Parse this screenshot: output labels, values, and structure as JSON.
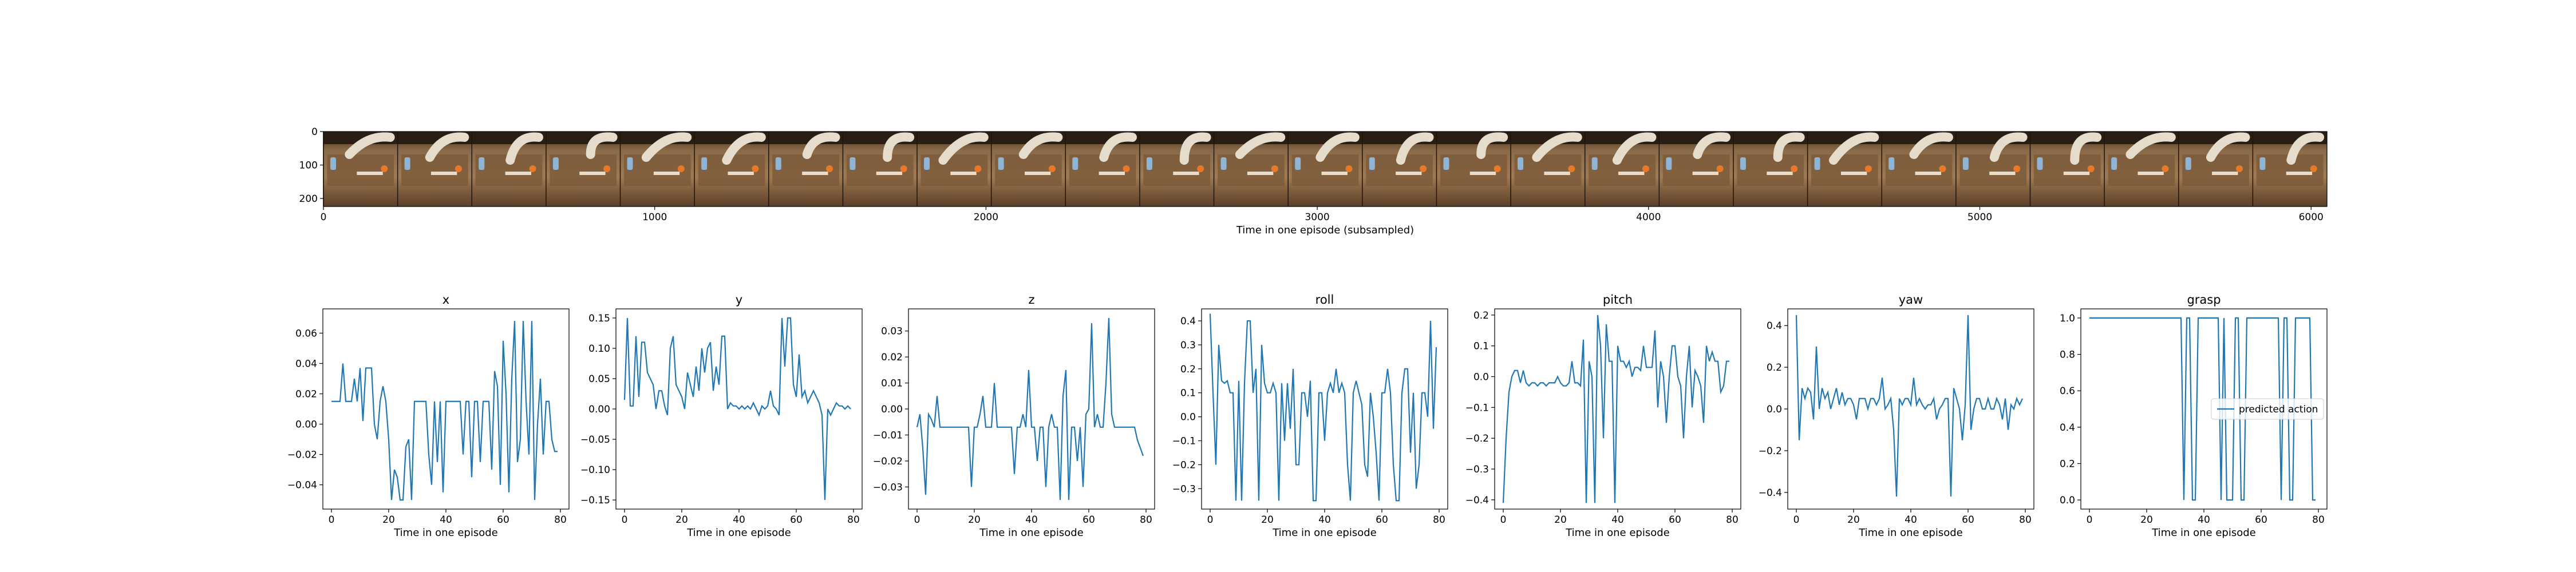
{
  "colors": {
    "series": "#1f77b4",
    "frame": "#000000",
    "background": "#ffffff"
  },
  "filmstrip": {
    "xlabel": "Time in one episode (subsampled)",
    "xlim": [
      0,
      6048
    ],
    "ylim": [
      224,
      0
    ],
    "xticks": [
      0,
      1000,
      2000,
      3000,
      4000,
      5000,
      6000
    ],
    "yticks": [
      0,
      100,
      200
    ],
    "frames": 27,
    "image_description_icon": "robot-arm-frames-image"
  },
  "chart_data": [
    {
      "type": "line",
      "title": "x",
      "xlabel": "Time in one episode",
      "ylabel": "",
      "xlim": [
        -3,
        83
      ],
      "ylim": [
        -0.056,
        0.076
      ],
      "xticks": [
        0,
        20,
        40,
        60,
        80
      ],
      "yticks": [
        -0.04,
        -0.02,
        0.0,
        0.02,
        0.04,
        0.06
      ],
      "yticklabels": [
        "−0.04",
        "−0.02",
        "0.00",
        "0.02",
        "0.04",
        "0.06"
      ],
      "series": [
        {
          "values": [
            0.015,
            0.015,
            0.015,
            0.015,
            0.04,
            0.015,
            0.015,
            0.015,
            0.03,
            0.015,
            0.037,
            0.002,
            0.037,
            0.037,
            0.037,
            0.0,
            -0.01,
            0.015,
            0.025,
            0.015,
            -0.01,
            -0.05,
            -0.03,
            -0.035,
            -0.05,
            -0.05,
            -0.015,
            -0.01,
            -0.05,
            0.015,
            0.015,
            0.015,
            0.015,
            0.015,
            -0.02,
            -0.04,
            0.015,
            -0.025,
            0.015,
            -0.045,
            0.015,
            0.015,
            0.015,
            0.015,
            0.015,
            0.015,
            -0.02,
            0.015,
            0.015,
            -0.035,
            0.015,
            0.015,
            -0.025,
            0.015,
            0.015,
            0.015,
            -0.03,
            0.035,
            0.025,
            -0.04,
            0.055,
            0.02,
            -0.045,
            0.03,
            0.068,
            -0.025,
            -0.01,
            0.068,
            0.015,
            -0.02,
            0.068,
            -0.05,
            0.0,
            0.03,
            -0.02,
            0.015,
            0.015,
            -0.01,
            -0.018,
            -0.018
          ]
        }
      ]
    },
    {
      "type": "line",
      "title": "y",
      "xlabel": "Time in one episode",
      "ylabel": "",
      "xlim": [
        -3,
        83
      ],
      "ylim": [
        -0.165,
        0.165
      ],
      "xticks": [
        0,
        20,
        40,
        60,
        80
      ],
      "yticks": [
        -0.15,
        -0.1,
        -0.05,
        0.0,
        0.05,
        0.1,
        0.15
      ],
      "yticklabels": [
        "−0.15",
        "−0.10",
        "−0.05",
        "0.00",
        "0.05",
        "0.10",
        "0.15"
      ],
      "series": [
        {
          "values": [
            0.015,
            0.15,
            0.005,
            0.005,
            0.12,
            0.02,
            0.11,
            0.11,
            0.06,
            0.05,
            0.04,
            0.0,
            0.03,
            0.03,
            0.005,
            -0.01,
            0.1,
            0.12,
            0.04,
            0.03,
            0.02,
            0.0,
            0.06,
            0.04,
            0.02,
            0.07,
            0.03,
            0.1,
            0.06,
            0.1,
            0.11,
            0.03,
            0.07,
            0.04,
            0.12,
            0.12,
            0.0,
            0.01,
            0.005,
            0.005,
            0.0,
            0.005,
            0.0,
            0.005,
            0.0,
            0.01,
            0.0,
            -0.01,
            0.005,
            0.0,
            0.005,
            0.03,
            0.005,
            0.0,
            -0.01,
            0.15,
            0.07,
            0.15,
            0.15,
            0.04,
            0.02,
            0.09,
            0.02,
            0.03,
            0.01,
            0.02,
            0.03,
            0.02,
            0.01,
            -0.01,
            -0.15,
            0.0,
            -0.01,
            0.0,
            0.01,
            0.005,
            0.005,
            0.0,
            0.005,
            0.0
          ]
        }
      ]
    },
    {
      "type": "line",
      "title": "z",
      "xlabel": "Time in one episode",
      "ylabel": "",
      "xlim": [
        -3,
        83
      ],
      "ylim": [
        -0.0385,
        0.0385
      ],
      "xticks": [
        0,
        20,
        40,
        60,
        80
      ],
      "yticks": [
        -0.03,
        -0.02,
        -0.01,
        0.0,
        0.01,
        0.02,
        0.03
      ],
      "yticklabels": [
        "−0.03",
        "−0.02",
        "−0.01",
        "0.00",
        "0.01",
        "0.02",
        "0.03"
      ],
      "series": [
        {
          "values": [
            -0.007,
            -0.002,
            -0.015,
            -0.033,
            -0.002,
            -0.004,
            -0.007,
            0.005,
            -0.007,
            -0.007,
            -0.007,
            -0.007,
            -0.007,
            -0.007,
            -0.007,
            -0.007,
            -0.007,
            -0.007,
            -0.007,
            -0.03,
            -0.007,
            -0.007,
            -0.002,
            0.005,
            -0.007,
            -0.007,
            -0.007,
            0.01,
            -0.007,
            -0.007,
            -0.007,
            -0.007,
            -0.007,
            -0.007,
            -0.025,
            -0.007,
            -0.007,
            -0.002,
            -0.007,
            0.015,
            -0.007,
            -0.007,
            -0.02,
            -0.007,
            -0.007,
            -0.03,
            -0.007,
            -0.002,
            -0.007,
            -0.007,
            -0.035,
            0.005,
            0.015,
            -0.035,
            -0.007,
            -0.007,
            -0.02,
            -0.007,
            -0.03,
            -0.002,
            0.0,
            0.033,
            -0.007,
            -0.002,
            -0.007,
            -0.007,
            0.01,
            0.035,
            -0.002,
            -0.007,
            -0.007,
            -0.007,
            -0.007,
            -0.007,
            -0.007,
            -0.007,
            -0.007,
            -0.012,
            -0.015,
            -0.018
          ]
        }
      ]
    },
    {
      "type": "line",
      "title": "roll",
      "xlabel": "Time in one episode",
      "ylabel": "",
      "xlim": [
        -3,
        83
      ],
      "ylim": [
        -0.385,
        0.45
      ],
      "xticks": [
        0,
        20,
        40,
        60,
        80
      ],
      "yticks": [
        -0.3,
        -0.2,
        -0.1,
        0.0,
        0.1,
        0.2,
        0.3,
        0.4
      ],
      "yticklabels": [
        "−0.3",
        "−0.2",
        "−0.1",
        "0.0",
        "0.1",
        "0.2",
        "0.3",
        "0.4"
      ],
      "series": [
        {
          "values": [
            0.43,
            0.1,
            -0.2,
            0.3,
            0.15,
            0.14,
            0.15,
            0.1,
            0.1,
            -0.35,
            0.15,
            -0.35,
            0.14,
            0.4,
            0.4,
            0.1,
            0.2,
            -0.35,
            0.3,
            0.14,
            0.1,
            0.1,
            0.14,
            0.1,
            -0.35,
            0.14,
            -0.1,
            0.14,
            -0.05,
            0.2,
            -0.2,
            -0.2,
            0.1,
            0.1,
            0.0,
            0.15,
            -0.35,
            -0.35,
            0.1,
            0.1,
            -0.1,
            0.1,
            0.14,
            0.1,
            0.2,
            0.1,
            0.14,
            0.1,
            -0.2,
            -0.35,
            0.1,
            0.15,
            0.1,
            0.05,
            -0.2,
            -0.25,
            0.1,
            0.0,
            -0.15,
            -0.35,
            0.1,
            0.1,
            0.2,
            0.1,
            -0.2,
            -0.35,
            -0.35,
            0.1,
            0.2,
            0.2,
            -0.15,
            0.1,
            -0.3,
            -0.2,
            0.1,
            0.1,
            0.0,
            0.4,
            -0.05,
            0.29
          ]
        }
      ]
    },
    {
      "type": "line",
      "title": "pitch",
      "xlabel": "Time in one episode",
      "ylabel": "",
      "xlim": [
        -3,
        83
      ],
      "ylim": [
        -0.43,
        0.22
      ],
      "xticks": [
        0,
        20,
        40,
        60,
        80
      ],
      "yticks": [
        -0.4,
        -0.3,
        -0.2,
        -0.1,
        0.0,
        0.1,
        0.2
      ],
      "yticklabels": [
        "−0.4",
        "−0.3",
        "−0.2",
        "−0.1",
        "0.0",
        "0.1",
        "0.2"
      ],
      "series": [
        {
          "values": [
            -0.41,
            -0.2,
            -0.05,
            0.0,
            0.02,
            0.02,
            -0.02,
            0.02,
            -0.02,
            -0.03,
            -0.02,
            -0.02,
            -0.03,
            -0.02,
            -0.02,
            -0.03,
            -0.02,
            -0.02,
            -0.02,
            0.0,
            -0.02,
            -0.03,
            -0.03,
            -0.02,
            0.05,
            -0.02,
            -0.02,
            -0.03,
            0.12,
            -0.41,
            0.05,
            0.0,
            -0.41,
            0.2,
            0.1,
            -0.2,
            0.17,
            0.05,
            0.05,
            -0.41,
            0.1,
            0.05,
            0.05,
            0.03,
            0.05,
            0.0,
            0.03,
            0.03,
            0.02,
            0.1,
            0.03,
            0.03,
            0.03,
            0.15,
            -0.1,
            0.05,
            0.0,
            -0.15,
            0.0,
            0.1,
            0.1,
            0.0,
            -0.03,
            -0.2,
            0.0,
            0.1,
            -0.1,
            0.02,
            0.0,
            -0.03,
            -0.15,
            0.1,
            0.05,
            0.08,
            0.05,
            0.05,
            -0.05,
            -0.03,
            0.05,
            0.05
          ]
        }
      ]
    },
    {
      "type": "line",
      "title": "yaw",
      "xlabel": "Time in one episode",
      "ylabel": "",
      "xlim": [
        -3,
        83
      ],
      "ylim": [
        -0.48,
        0.48
      ],
      "xticks": [
        0,
        20,
        40,
        60,
        80
      ],
      "yticks": [
        -0.4,
        -0.2,
        0.0,
        0.2,
        0.4
      ],
      "yticklabels": [
        "−0.4",
        "−0.2",
        "0.0",
        "0.2",
        "0.4"
      ],
      "series": [
        {
          "values": [
            0.45,
            -0.15,
            0.1,
            0.05,
            0.1,
            0.08,
            -0.05,
            0.3,
            0.0,
            0.1,
            0.05,
            0.08,
            0.0,
            0.05,
            0.1,
            0.02,
            0.08,
            0.02,
            0.05,
            0.05,
            0.02,
            -0.05,
            0.05,
            0.05,
            0.05,
            0.0,
            0.05,
            0.05,
            0.02,
            0.05,
            0.15,
            0.0,
            0.02,
            0.05,
            -0.1,
            -0.42,
            0.05,
            0.02,
            0.05,
            0.05,
            0.02,
            0.15,
            0.02,
            0.05,
            0.02,
            0.0,
            0.02,
            0.02,
            0.05,
            -0.05,
            0.0,
            0.02,
            0.05,
            0.05,
            -0.42,
            0.1,
            0.05,
            0.0,
            -0.15,
            0.02,
            0.45,
            -0.1,
            0.0,
            0.05,
            0.05,
            0.0,
            0.0,
            0.05,
            0.0,
            0.0,
            0.05,
            0.02,
            -0.05,
            0.05,
            -0.1,
            0.02,
            0.0,
            0.05,
            0.02,
            0.05
          ]
        }
      ]
    },
    {
      "type": "line",
      "title": "grasp",
      "xlabel": "Time in one episode",
      "ylabel": "",
      "xlim": [
        -3,
        83
      ],
      "ylim": [
        -0.05,
        1.05
      ],
      "xticks": [
        0,
        20,
        40,
        60,
        80
      ],
      "yticks": [
        0.0,
        0.2,
        0.4,
        0.6,
        0.8,
        1.0
      ],
      "yticklabels": [
        "0.0",
        "0.2",
        "0.4",
        "0.6",
        "0.8",
        "1.0"
      ],
      "legend": {
        "entries": [
          "predicted action"
        ],
        "placement": "center-right"
      },
      "series": [
        {
          "name": "predicted action",
          "values": [
            1,
            1,
            1,
            1,
            1,
            1,
            1,
            1,
            1,
            1,
            1,
            1,
            1,
            1,
            1,
            1,
            1,
            1,
            1,
            1,
            1,
            1,
            1,
            1,
            1,
            1,
            1,
            1,
            1,
            1,
            1,
            1,
            1,
            0,
            1,
            1,
            0,
            0,
            1,
            1,
            1,
            1,
            1,
            1,
            1,
            1,
            0,
            1,
            0,
            0,
            0,
            1,
            1,
            0,
            0,
            1,
            1,
            1,
            1,
            1,
            1,
            1,
            1,
            1,
            1,
            1,
            1,
            0,
            1,
            1,
            0,
            0,
            1,
            1,
            1,
            1,
            1,
            1,
            0,
            0
          ]
        }
      ]
    }
  ]
}
